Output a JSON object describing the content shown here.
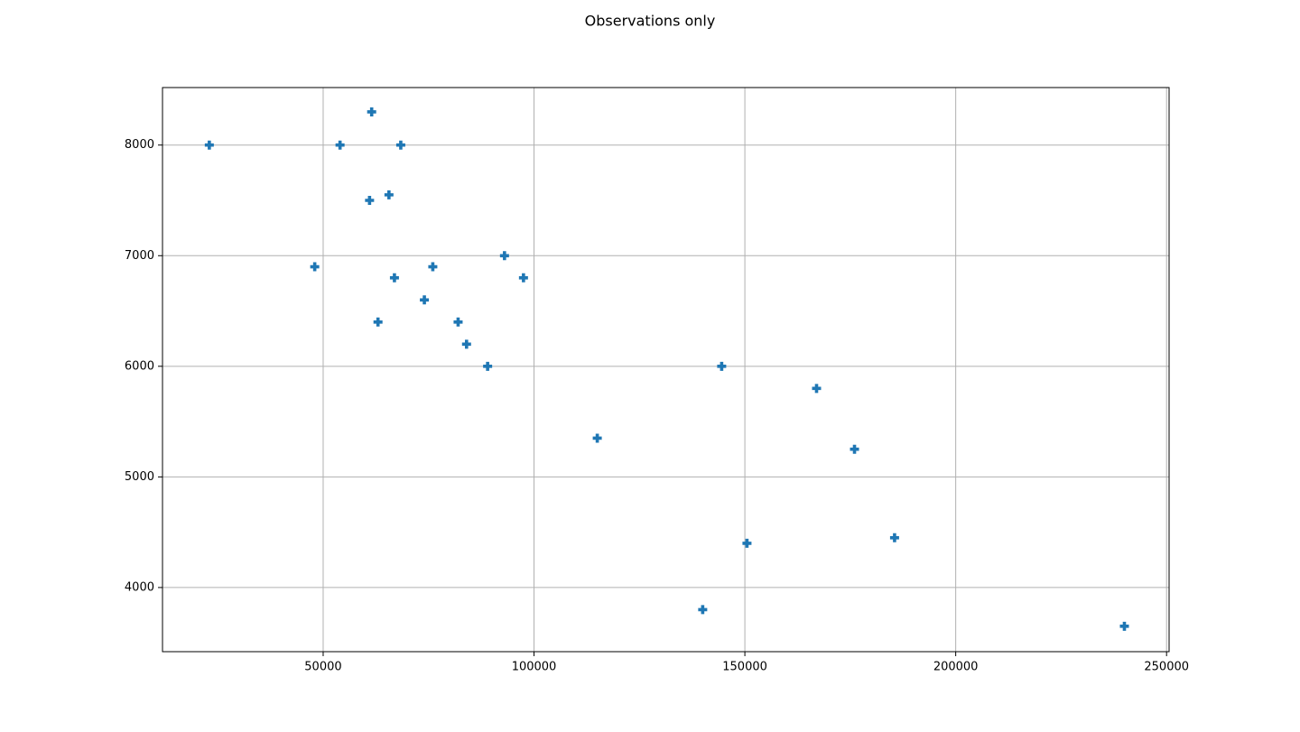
{
  "chart_data": {
    "type": "scatter",
    "title": "Observations only",
    "x": [
      23000,
      48000,
      54000,
      61500,
      61000,
      65600,
      68400,
      66900,
      63000,
      74000,
      76000,
      82000,
      84000,
      89000,
      93000,
      97500,
      115000,
      140000,
      144500,
      150500,
      167000,
      176000,
      185500,
      240000
    ],
    "values": [
      8000,
      6900,
      8000,
      8300,
      7500,
      7550,
      8000,
      6800,
      6400,
      6600,
      6900,
      6400,
      6200,
      6000,
      7000,
      6800,
      5350,
      3800,
      6000,
      4400,
      5800,
      5250,
      4450,
      3650
    ],
    "color": "#1f77b4",
    "xlim": [
      11900,
      250600
    ],
    "ylim": [
      3420,
      8520
    ],
    "xticks": [
      50000,
      100000,
      150000,
      200000,
      250000
    ],
    "yticks": [
      4000,
      5000,
      6000,
      7000,
      8000
    ],
    "grid": true
  }
}
